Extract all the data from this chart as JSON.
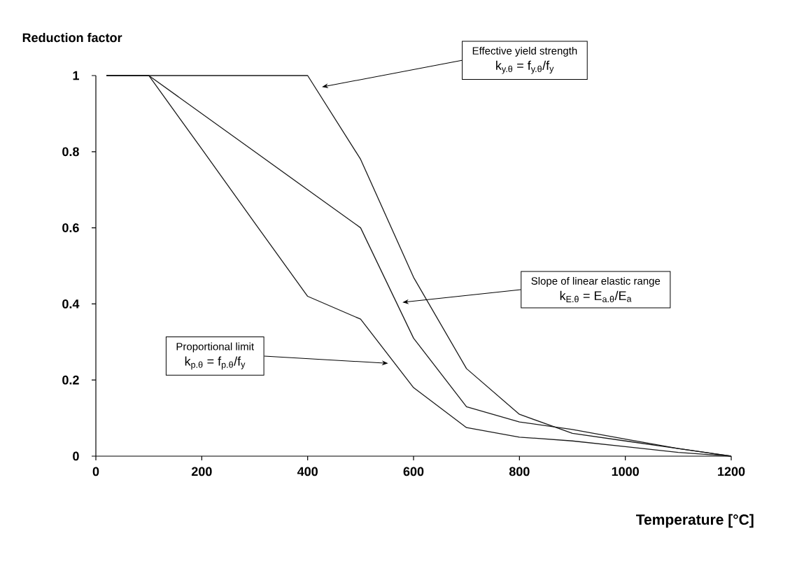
{
  "chart_data": {
    "type": "line",
    "xlabel": "Temperature [°C]",
    "ylabel": "Reduction factor",
    "x": [
      20,
      100,
      200,
      300,
      400,
      500,
      600,
      700,
      800,
      900,
      1000,
      1100,
      1200
    ],
    "series": [
      {
        "color": "#1a1a1a",
        "values": [
          1,
          1,
          1,
          1,
          1,
          0.78,
          0.47,
          0.23,
          0.11,
          0.06,
          0.04,
          0.02,
          0
        ]
      },
      {
        "color": "#1a1a1a",
        "values": [
          1,
          1,
          0.9,
          0.8,
          0.7,
          0.6,
          0.31,
          0.13,
          0.09,
          0.07,
          0.045,
          0.02,
          0
        ]
      },
      {
        "color": "#1a1a1a",
        "values": [
          1,
          1,
          0.807,
          0.613,
          0.42,
          0.36,
          0.18,
          0.075,
          0.05,
          0.04,
          0.025,
          0.01,
          0
        ]
      }
    ],
    "xlim": [
      0,
      1200
    ],
    "ylim": [
      0,
      1
    ],
    "xticks": [
      0,
      200,
      400,
      600,
      800,
      1000,
      1200
    ],
    "yticks": [
      0,
      0.2,
      0.4,
      0.6,
      0.8,
      1
    ],
    "marker": "none",
    "line_style": "solid",
    "grid": false,
    "annotations": [
      "Effective yield strength",
      "k$_{y.θ}$ = f$_{y.θ}$/f$_{y}$",
      "Slope of linear elastic range",
      "k$_{E.θ}$ = E$_{a.θ}$/E$_{a}$",
      "Proportional limit",
      "k$_{p.θ}$ = f$_{p.θ}$/f$_{y}$"
    ]
  }
}
